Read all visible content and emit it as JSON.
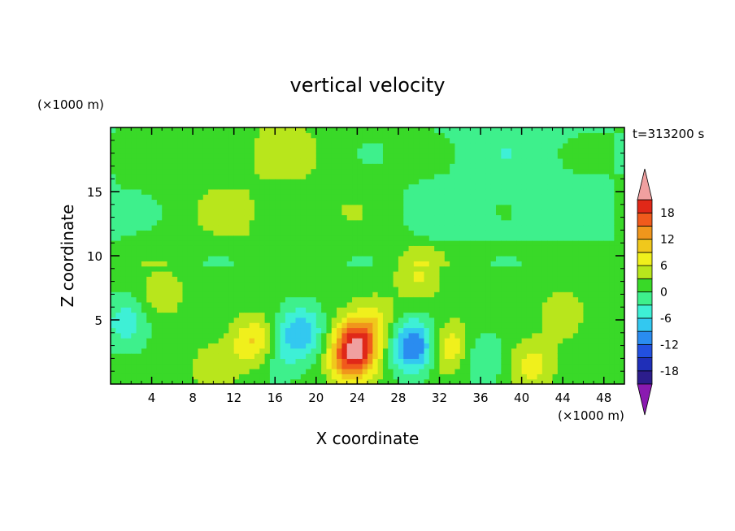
{
  "chart_data": {
    "type": "heatmap",
    "title": "vertical velocity",
    "xlabel": "X coordinate",
    "ylabel": "Z coordinate",
    "x_unit": "(×1000 m)",
    "y_unit": "(×1000 m)",
    "time_label": "t=313200 s",
    "xlim": [
      0,
      50
    ],
    "ylim": [
      0,
      20
    ],
    "x_ticks": [
      4,
      8,
      12,
      16,
      20,
      24,
      28,
      32,
      36,
      40,
      44,
      48
    ],
    "y_ticks": [
      5,
      10,
      15
    ],
    "colorbar": {
      "levels": [
        -21,
        -18,
        -15,
        -12,
        -9,
        -6,
        -3,
        0,
        3,
        6,
        9,
        12,
        15,
        18,
        21
      ],
      "tick_labels": [
        "18",
        "12",
        "6",
        "0",
        "-6",
        "-12",
        "-18"
      ],
      "tick_values": [
        18,
        12,
        6,
        0,
        -6,
        -12,
        -18
      ],
      "colors": [
        "#6a1aa8",
        "#2c1d8c",
        "#1f2fb8",
        "#2250e0",
        "#2a8cf0",
        "#33c8f0",
        "#3ef0d6",
        "#3ef08c",
        "#39d928",
        "#b8e61c",
        "#f0f01c",
        "#f0c81c",
        "#f0961c",
        "#f05a1c",
        "#e02818",
        "#f0a0a0"
      ],
      "over_color": "#f0a0a0",
      "under_color": "#8a1ab0"
    },
    "features": [
      {
        "x": 14,
        "z": 3.2,
        "value": 9
      },
      {
        "x": 24,
        "z": 3.5,
        "value": 12
      },
      {
        "x": 23.5,
        "z": 2.0,
        "value": 14
      },
      {
        "x": 33,
        "z": 2.8,
        "value": 8
      },
      {
        "x": 29.5,
        "z": 3.0,
        "value": -14
      },
      {
        "x": 18.5,
        "z": 4.0,
        "value": -10
      },
      {
        "x": 41,
        "z": 1.5,
        "value": 6
      },
      {
        "x": 10,
        "z": 1.2,
        "value": 4
      },
      {
        "x": 5,
        "z": 7.0,
        "value": 4
      },
      {
        "x": 30,
        "z": 8.5,
        "value": 5
      },
      {
        "x": 44,
        "z": 5.5,
        "value": 4
      },
      {
        "x": 1.5,
        "z": 4.8,
        "value": -6
      },
      {
        "x": 36,
        "z": 2.0,
        "value": -5
      },
      {
        "x": 16,
        "z": 2.0,
        "value": -4
      },
      {
        "x": 26,
        "z": 5.0,
        "value": 4
      }
    ]
  }
}
